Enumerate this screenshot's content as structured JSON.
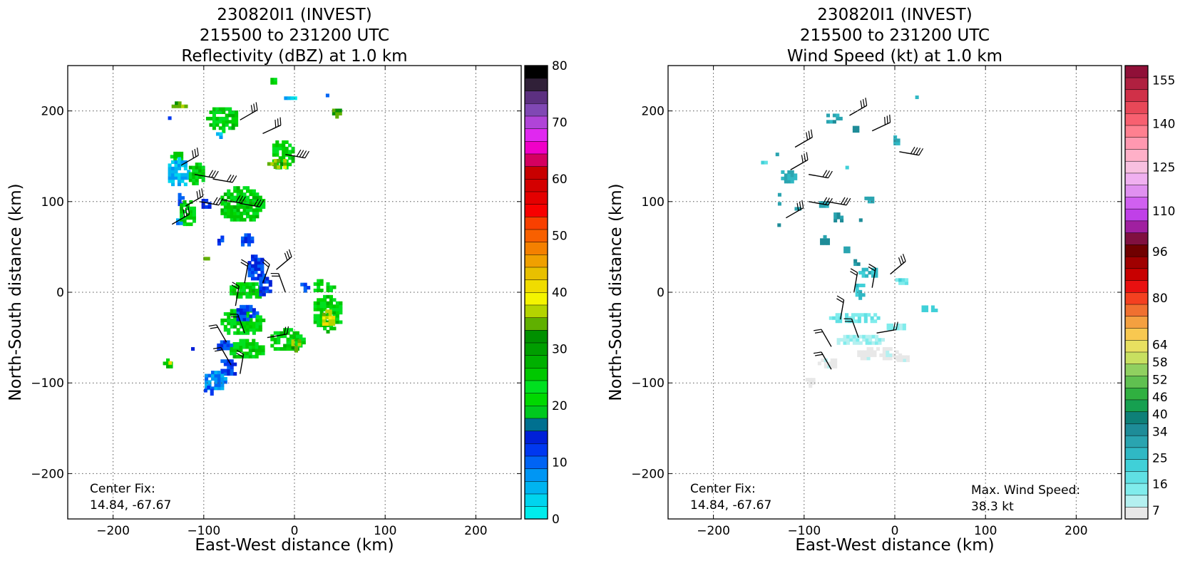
{
  "chart_data": [
    {
      "type": "heatmap",
      "title_lines": [
        "230820I1 (INVEST)",
        "215500 to 231200 UTC",
        "Reflectivity (dBZ) at 1.0 km"
      ],
      "xlabel": "East-West distance (km)",
      "ylabel": "North-South distance (km)",
      "xlim": [
        -250,
        250
      ],
      "ylim": [
        -250,
        250
      ],
      "xticks": [
        -200,
        -100,
        0,
        100,
        200
      ],
      "yticks": [
        -200,
        -100,
        0,
        100,
        200
      ],
      "grid": true,
      "colorbar": {
        "range": [
          0,
          80
        ],
        "tick_labels": [
          "0",
          "10",
          "20",
          "30",
          "40",
          "50",
          "60",
          "70",
          "80"
        ],
        "colors": [
          "#00ecec",
          "#00d4ee",
          "#00b4f0",
          "#0096f4",
          "#0064f4",
          "#0038f0",
          "#0020d8",
          "#007090",
          "#00c81e",
          "#00d800",
          "#00e020",
          "#00c800",
          "#00b000",
          "#009e00",
          "#009000",
          "#60b000",
          "#b4d400",
          "#f4f400",
          "#f0dc00",
          "#e8c000",
          "#f0a000",
          "#f48000",
          "#f86000",
          "#f84000",
          "#f80000",
          "#e40000",
          "#d40000",
          "#c80000",
          "#d40060",
          "#f000c8",
          "#e028f0",
          "#b044d8",
          "#8048b4",
          "#5c3080",
          "#302038",
          "#000000"
        ]
      },
      "annotations": [
        "Center Fix:",
        "14.84, -67.67"
      ],
      "wind_barbs": true,
      "regions_km": [
        {
          "x": -130,
          "y": 205,
          "w": 18,
          "h": 10,
          "v": 35
        },
        {
          "x": -140,
          "y": 190,
          "w": 6,
          "h": 6,
          "v": 12
        },
        {
          "x": -80,
          "y": 190,
          "w": 35,
          "h": 28,
          "v": 24
        },
        {
          "x": -85,
          "y": 170,
          "w": 10,
          "h": 8,
          "v": 5
        },
        {
          "x": -25,
          "y": 230,
          "w": 10,
          "h": 8,
          "v": 24
        },
        {
          "x": -5,
          "y": 212,
          "w": 20,
          "h": 6,
          "v": 5
        },
        {
          "x": 35,
          "y": 215,
          "w": 8,
          "h": 6,
          "v": 12
        },
        {
          "x": 45,
          "y": 196,
          "w": 14,
          "h": 8,
          "v": 35
        },
        {
          "x": -130,
          "y": 148,
          "w": 14,
          "h": 14,
          "v": 24
        },
        {
          "x": -130,
          "y": 130,
          "w": 26,
          "h": 32,
          "v": 5
        },
        {
          "x": -110,
          "y": 128,
          "w": 20,
          "h": 26,
          "v": 24
        },
        {
          "x": -15,
          "y": 150,
          "w": 26,
          "h": 35,
          "v": 24
        },
        {
          "x": -20,
          "y": 140,
          "w": 20,
          "h": 14,
          "v": 35
        },
        {
          "x": -128,
          "y": 100,
          "w": 8,
          "h": 16,
          "v": 12
        },
        {
          "x": -120,
          "y": 85,
          "w": 20,
          "h": 30,
          "v": 24
        },
        {
          "x": -130,
          "y": 75,
          "w": 8,
          "h": 8,
          "v": 8
        },
        {
          "x": -60,
          "y": 95,
          "w": 50,
          "h": 40,
          "v": 24
        },
        {
          "x": -100,
          "y": 95,
          "w": 12,
          "h": 12,
          "v": 12
        },
        {
          "x": -85,
          "y": 58,
          "w": 14,
          "h": 12,
          "v": 12
        },
        {
          "x": -55,
          "y": 55,
          "w": 15,
          "h": 15,
          "v": 12
        },
        {
          "x": -100,
          "y": 35,
          "w": 8,
          "h": 6,
          "v": 35
        },
        {
          "x": -45,
          "y": 25,
          "w": 20,
          "h": 30,
          "v": 12
        },
        {
          "x": -55,
          "y": 0,
          "w": 40,
          "h": 20,
          "v": 24
        },
        {
          "x": -35,
          "y": 5,
          "w": 15,
          "h": 25,
          "v": 12
        },
        {
          "x": 30,
          "y": 5,
          "w": 25,
          "h": 16,
          "v": 24
        },
        {
          "x": 10,
          "y": 5,
          "w": 14,
          "h": 10,
          "v": 12
        },
        {
          "x": -60,
          "y": -35,
          "w": 50,
          "h": 30,
          "v": 24
        },
        {
          "x": -55,
          "y": -25,
          "w": 25,
          "h": 20,
          "v": 12
        },
        {
          "x": 35,
          "y": -25,
          "w": 35,
          "h": 40,
          "v": 24
        },
        {
          "x": 35,
          "y": -30,
          "w": 16,
          "h": 20,
          "v": 38
        },
        {
          "x": -10,
          "y": -55,
          "w": 40,
          "h": 25,
          "v": 24
        },
        {
          "x": 0,
          "y": -60,
          "w": 14,
          "h": 12,
          "v": 35
        },
        {
          "x": -55,
          "y": -65,
          "w": 40,
          "h": 22,
          "v": 24
        },
        {
          "x": -80,
          "y": -60,
          "w": 18,
          "h": 14,
          "v": 12
        },
        {
          "x": -75,
          "y": -85,
          "w": 20,
          "h": 20,
          "v": 12
        },
        {
          "x": -90,
          "y": -100,
          "w": 25,
          "h": 22,
          "v": 8
        },
        {
          "x": -95,
          "y": -110,
          "w": 10,
          "h": 14,
          "v": 12
        },
        {
          "x": -140,
          "y": -80,
          "w": 10,
          "h": 14,
          "v": 24
        },
        {
          "x": -140,
          "y": -80,
          "w": 5,
          "h": 6,
          "v": 40
        },
        {
          "x": -115,
          "y": -65,
          "w": 5,
          "h": 5,
          "v": 12
        },
        {
          "x": -125,
          "y": -90,
          "w": 5,
          "h": 5,
          "v": 24
        }
      ]
    },
    {
      "type": "heatmap",
      "title_lines": [
        "230820I1 (INVEST)",
        "215500 to 231200 UTC",
        "Wind Speed (kt) at 1.0 km"
      ],
      "xlabel": "East-West distance (km)",
      "ylabel": "North-South distance (km)",
      "xlim": [
        -250,
        250
      ],
      "ylim": [
        -250,
        250
      ],
      "xticks": [
        -200,
        -100,
        0,
        100,
        200
      ],
      "yticks": [
        -200,
        -100,
        0,
        100,
        200
      ],
      "grid": true,
      "colorbar": {
        "range": [
          4,
          160
        ],
        "tick_values": [
          7,
          16,
          25,
          34,
          40,
          46,
          52,
          58,
          64,
          80,
          96,
          110,
          125,
          140,
          155
        ],
        "tick_labels": [
          "7",
          "16",
          "25",
          "34",
          "40",
          "46",
          "52",
          "58",
          "64",
          "80",
          "96",
          "110",
          "125",
          "140",
          "155"
        ],
        "colors": [
          "#e8e8e8",
          "#b4f0f0",
          "#80ecec",
          "#60e0e4",
          "#40d0d8",
          "#30b8c4",
          "#2aa4b0",
          "#1e8c98",
          "#0e8078",
          "#16a050",
          "#30b040",
          "#60c050",
          "#90d060",
          "#c8e060",
          "#e8e060",
          "#f8c850",
          "#f4a040",
          "#f07030",
          "#f44020",
          "#e81010",
          "#c80000",
          "#a00000",
          "#700000",
          "#801040",
          "#a020a0",
          "#c040e8",
          "#d060f0",
          "#e090f0",
          "#f0b0f0",
          "#f8c0e0",
          "#ffb0c8",
          "#ff98b0",
          "#ff8090",
          "#f86070",
          "#e84858",
          "#d03048",
          "#b02040",
          "#901038"
        ]
      },
      "annotations": [
        "Center Fix:",
        "14.84, -67.67"
      ],
      "max_wind_label": "Max. Wind Speed:",
      "max_wind_value": "38.3 kt",
      "wind_barbs": true,
      "regions_km": [
        {
          "x": -70,
          "y": 190,
          "w": 18,
          "h": 14,
          "v": 30
        },
        {
          "x": -45,
          "y": 178,
          "w": 10,
          "h": 10,
          "v": 34
        },
        {
          "x": 0,
          "y": 165,
          "w": 10,
          "h": 12,
          "v": 28
        },
        {
          "x": 22,
          "y": 212,
          "w": 6,
          "h": 4,
          "v": 24
        },
        {
          "x": -130,
          "y": 150,
          "w": 10,
          "h": 6,
          "v": 30
        },
        {
          "x": -145,
          "y": 140,
          "w": 12,
          "h": 4,
          "v": 20
        },
        {
          "x": -120,
          "y": 125,
          "w": 18,
          "h": 16,
          "v": 28
        },
        {
          "x": -135,
          "y": 115,
          "w": 5,
          "h": 5,
          "v": 34
        },
        {
          "x": -55,
          "y": 135,
          "w": 6,
          "h": 5,
          "v": 26
        },
        {
          "x": -130,
          "y": 105,
          "w": 5,
          "h": 5,
          "v": 34
        },
        {
          "x": -130,
          "y": 95,
          "w": 5,
          "h": 5,
          "v": 34
        },
        {
          "x": -110,
          "y": 90,
          "w": 8,
          "h": 6,
          "v": 30
        },
        {
          "x": -80,
          "y": 95,
          "w": 14,
          "h": 10,
          "v": 30
        },
        {
          "x": -65,
          "y": 80,
          "w": 12,
          "h": 12,
          "v": 34
        },
        {
          "x": -30,
          "y": 100,
          "w": 14,
          "h": 10,
          "v": 28
        },
        {
          "x": -40,
          "y": 75,
          "w": 6,
          "h": 8,
          "v": 34
        },
        {
          "x": -130,
          "y": 72,
          "w": 6,
          "h": 6,
          "v": 34
        },
        {
          "x": -80,
          "y": 55,
          "w": 12,
          "h": 12,
          "v": 34
        },
        {
          "x": -55,
          "y": 45,
          "w": 10,
          "h": 10,
          "v": 30
        },
        {
          "x": -45,
          "y": 30,
          "w": 8,
          "h": 8,
          "v": 34
        },
        {
          "x": -30,
          "y": 20,
          "w": 20,
          "h": 14,
          "v": 26
        },
        {
          "x": -40,
          "y": 0,
          "w": 14,
          "h": 16,
          "v": 26
        },
        {
          "x": 5,
          "y": 10,
          "w": 16,
          "h": 10,
          "v": 18
        },
        {
          "x": 35,
          "y": -20,
          "w": 18,
          "h": 10,
          "v": 22
        },
        {
          "x": -45,
          "y": -30,
          "w": 55,
          "h": 14,
          "v": 16
        },
        {
          "x": 0,
          "y": -40,
          "w": 25,
          "h": 10,
          "v": 14
        },
        {
          "x": -40,
          "y": -55,
          "w": 55,
          "h": 12,
          "v": 11
        },
        {
          "x": -20,
          "y": -70,
          "w": 50,
          "h": 16,
          "v": 6
        },
        {
          "x": -75,
          "y": -80,
          "w": 20,
          "h": 14,
          "v": 6
        },
        {
          "x": -95,
          "y": -100,
          "w": 14,
          "h": 10,
          "v": 6
        },
        {
          "x": 5,
          "y": -75,
          "w": 20,
          "h": 10,
          "v": 6
        }
      ]
    }
  ]
}
